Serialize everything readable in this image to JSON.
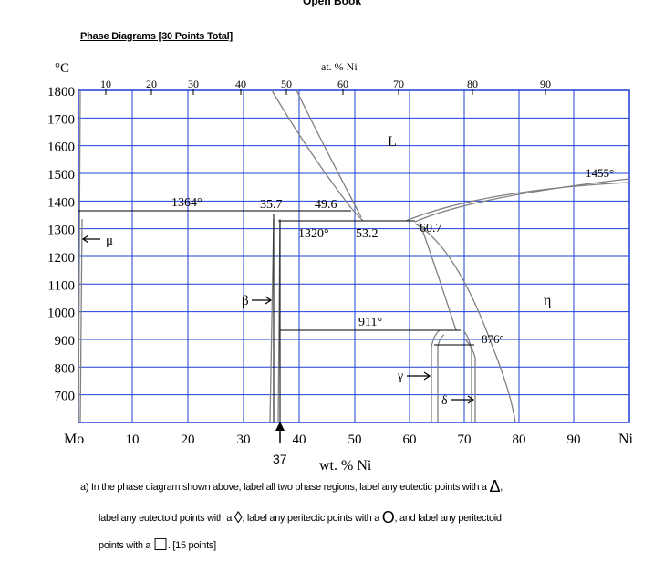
{
  "header": {
    "title": "Open Book"
  },
  "section": {
    "title": "Phase Diagrams [30 Points Total]"
  },
  "diagram": {
    "y_unit": "°C",
    "top_axis_label": "at. % Ni",
    "top_ticks": [
      "10",
      "20",
      "30",
      "40",
      "50",
      "60",
      "70",
      "80",
      "90"
    ],
    "left_ticks": [
      "1800",
      "1700",
      "1600",
      "1500",
      "1400",
      "1300",
      "1200",
      "1100",
      "1000",
      "900",
      "800",
      "700"
    ],
    "bottom_ticks": [
      "10",
      "20",
      "30",
      "40",
      "50",
      "60",
      "70",
      "80",
      "90"
    ],
    "bottom_left_label": "Mo",
    "bottom_right_label": "Ni",
    "bottom_axis_label": "wt. % Ni",
    "marker_value": "37",
    "labels": {
      "liquid": "L",
      "mu": "μ",
      "beta": "β",
      "gamma": "γ",
      "delta": "δ",
      "eta": "η",
      "t1364": "1364°",
      "t1320": "1320°",
      "t911": "911°",
      "t876": "876°",
      "t1455": "1455°",
      "c35_7": "35.7",
      "c49_6": "49.6",
      "c53_2": "53.2",
      "c60_7": "60.7"
    },
    "colors": {
      "grid": "#1f3fd6",
      "curve": "#808080",
      "line": "#000000"
    }
  },
  "question": {
    "line1_a": "a)   In the phase diagram shown above, label all two phase regions, label any eutectic points with a ",
    "sym_triangle": "Δ",
    "line1_b": ",",
    "line2_a": "label any eutectoid points with a ",
    "sym_diamond": "◊",
    "line2_b": ", label any peritectic points with a ",
    "sym_circle": "O",
    "line2_c": ", and label any peritectoid",
    "line3_a": "points with a ",
    "sym_square": "☐",
    "line3_b": ". [15 points]"
  }
}
